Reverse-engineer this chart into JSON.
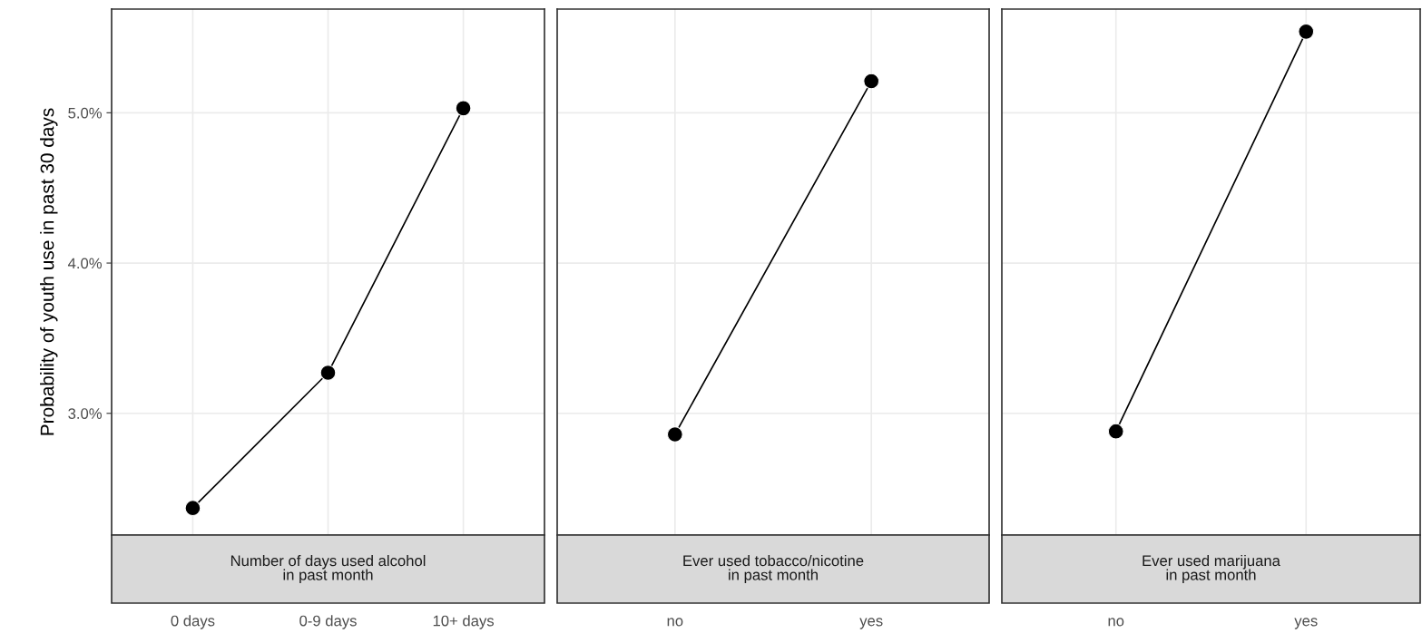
{
  "chart_data": [
    {
      "type": "line",
      "xlabel": "Number of days used alcohol\nin past month",
      "ylabel": "Probability of youth use in past 30 days",
      "categories": [
        "0 days",
        "0-9 days",
        "10+ days"
      ],
      "series": [
        {
          "color": "#000000",
          "values": [
            2.37,
            3.27,
            5.03
          ]
        }
      ],
      "ylim": [
        2.19,
        5.69
      ],
      "yticks": [
        {
          "value": 3,
          "label": "3.0%"
        },
        {
          "value": 4,
          "label": "4.0%"
        },
        {
          "value": 5,
          "label": "5.0%"
        }
      ],
      "grid": true,
      "marker": "circle",
      "line_style": "solid",
      "legend": false
    },
    {
      "type": "line",
      "xlabel": "Ever used tobacco/nicotine\nin past month",
      "categories": [
        "no",
        "yes"
      ],
      "series": [
        {
          "color": "#000000",
          "values": [
            2.86,
            5.21
          ]
        }
      ],
      "ylim": [
        2.19,
        5.69
      ],
      "yticks": [
        3,
        4,
        5
      ],
      "tick_labels": "x",
      "grid": true,
      "marker": "circle",
      "line_style": "solid",
      "legend": false
    },
    {
      "type": "line",
      "xlabel": "Ever used marijuana\nin past month",
      "categories": [
        "no",
        "yes"
      ],
      "series": [
        {
          "color": "#000000",
          "values": [
            2.88,
            5.54
          ]
        }
      ],
      "ylim": [
        2.19,
        5.69
      ],
      "yticks": [
        3,
        4,
        5
      ],
      "tick_labels": "x",
      "grid": true,
      "marker": "circle",
      "line_style": "solid",
      "legend": false
    }
  ]
}
